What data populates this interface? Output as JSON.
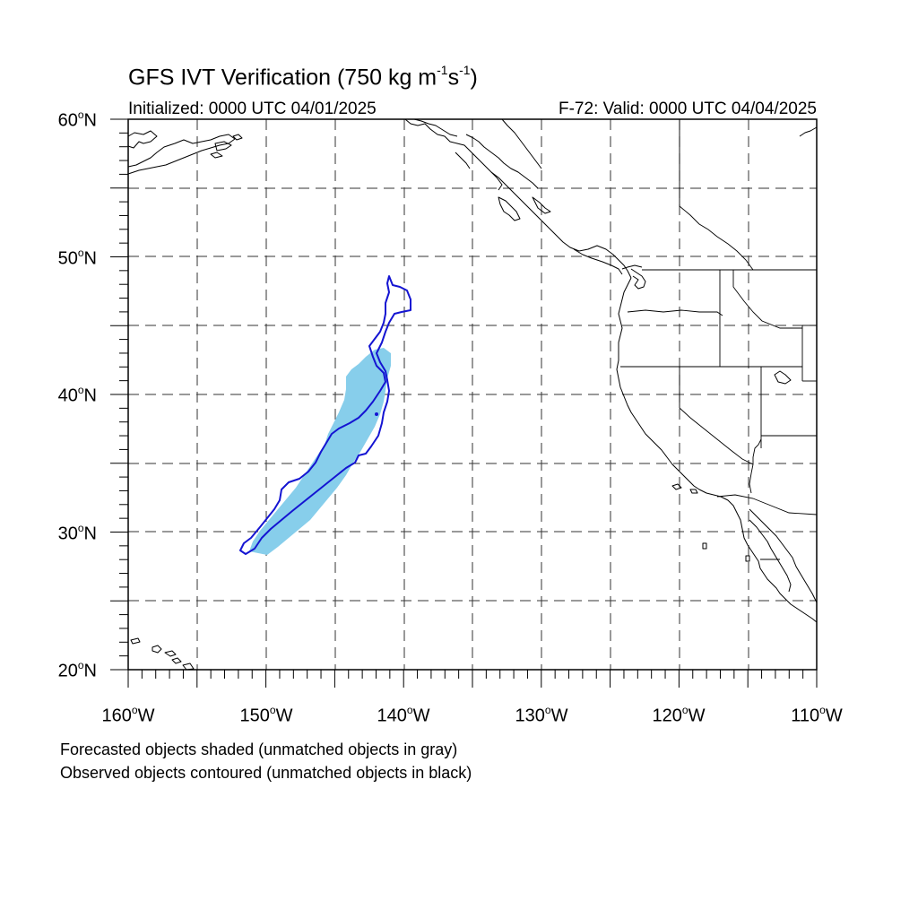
{
  "title": {
    "prefix": "GFS IVT Verification (750 kg m",
    "exp1": "-1",
    "mid": "s",
    "exp2": "-1",
    "suffix": ")"
  },
  "initialized_text": "Initialized: 0000 UTC 04/01/2025",
  "valid_text": "F-72: Valid: 0000 UTC 04/04/2025",
  "lat_labels": [
    {
      "value": "60",
      "unit": "o",
      "hem": "N"
    },
    {
      "value": "50",
      "unit": "o",
      "hem": "N"
    },
    {
      "value": "40",
      "unit": "o",
      "hem": "N"
    },
    {
      "value": "30",
      "unit": "o",
      "hem": "N"
    },
    {
      "value": "20",
      "unit": "o",
      "hem": "N"
    }
  ],
  "lon_labels": [
    {
      "value": "160",
      "unit": "o",
      "hem": "W"
    },
    {
      "value": "150",
      "unit": "o",
      "hem": "W"
    },
    {
      "value": "140",
      "unit": "o",
      "hem": "W"
    },
    {
      "value": "130",
      "unit": "o",
      "hem": "W"
    },
    {
      "value": "120",
      "unit": "o",
      "hem": "W"
    },
    {
      "value": "110",
      "unit": "o",
      "hem": "W"
    }
  ],
  "notes": {
    "line1": "Forecasted objects shaded (unmatched objects in gray)",
    "line2": "Observed objects contoured (unmatched objects in black)"
  },
  "map": {
    "lon_range": [
      -160,
      -110
    ],
    "lat_range": [
      20,
      60
    ],
    "grid_lines": "dashed every 5 degrees",
    "forecast_color": "#87ceeb",
    "observed_color": "#1414d2",
    "coast_color": "#000000"
  }
}
